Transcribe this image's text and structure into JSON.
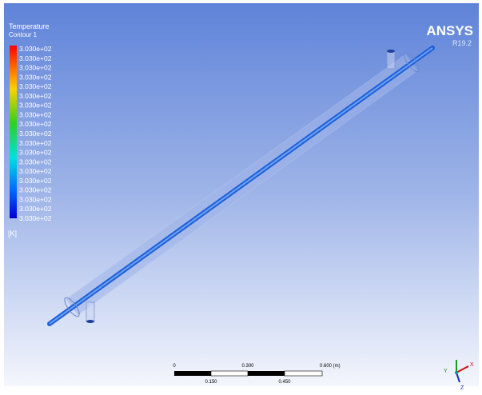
{
  "legend": {
    "title": "Temperature",
    "subtitle": "Contour 1",
    "labels": [
      "3.030e+02",
      "3.030e+02",
      "3.030e+02",
      "3.030e+02",
      "3.030e+02",
      "3.030e+02",
      "3.030e+02",
      "3.030e+02",
      "3.030e+02",
      "3.030e+02",
      "3.030e+02",
      "3.030e+02",
      "3.030e+02",
      "3.030e+02",
      "3.030e+02",
      "3.030e+02",
      "3.030e+02",
      "3.030e+02",
      "3.030e+02"
    ],
    "unit": "[K]"
  },
  "logo": {
    "name": "ANSYS",
    "version": "R19.2"
  },
  "scale_bar": {
    "top_labels": [
      "0",
      "0.300",
      "0.600 (m)"
    ],
    "bottom_labels": [
      "0.150",
      "0.450"
    ]
  },
  "triad": {
    "labels": [
      "Y",
      "X",
      "Z"
    ]
  }
}
